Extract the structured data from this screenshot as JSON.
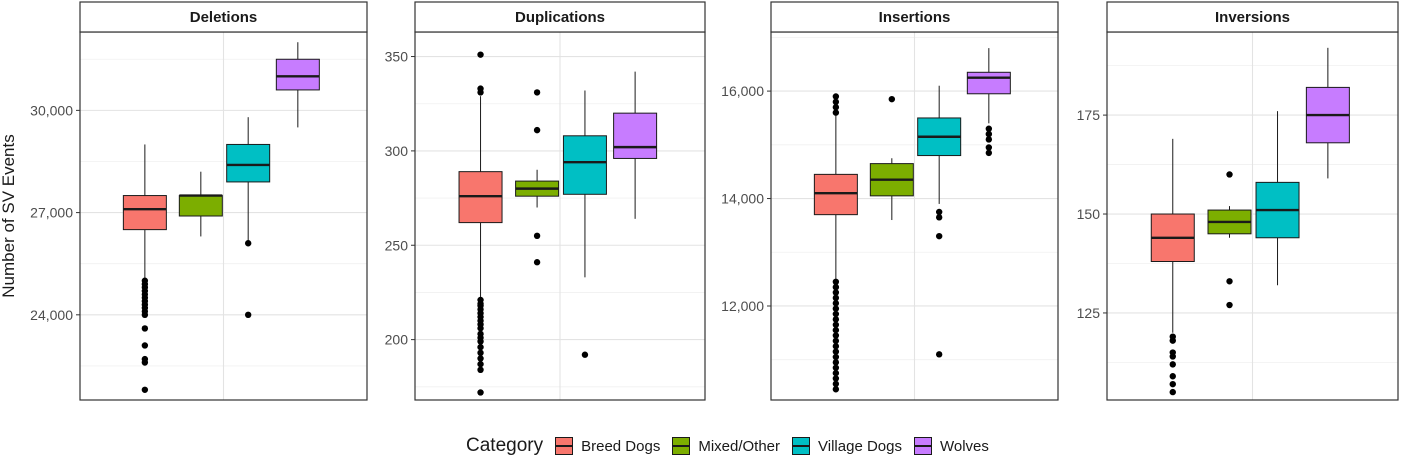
{
  "chart_data": [
    {
      "type": "box",
      "title": "Deletions",
      "ylabel": "Number of SV Events",
      "ylim": [
        21500,
        32300
      ],
      "yticks": [
        24000,
        27000,
        30000
      ],
      "ytick_labels": [
        "24,000",
        "27,000",
        "30,000"
      ],
      "groups": [
        {
          "category": "Breed Dogs",
          "q1": 26500,
          "median": 27100,
          "q3": 27500,
          "whisker_low": 25000,
          "whisker_high": 29000,
          "outliers": [
            25000,
            24900,
            24800,
            24700,
            24600,
            24500,
            24400,
            24300,
            24200,
            24100,
            24000,
            23600,
            23100,
            22700,
            22600,
            21800
          ]
        },
        {
          "category": "Mixed/Other",
          "q1": 26900,
          "median": 27500,
          "q3": 27500,
          "whisker_low": 26300,
          "whisker_high": 28200,
          "outliers": []
        },
        {
          "category": "Village Dogs",
          "q1": 27900,
          "median": 28400,
          "q3": 29000,
          "whisker_low": 26100,
          "whisker_high": 29800,
          "outliers": [
            26100,
            24000
          ]
        },
        {
          "category": "Wolves",
          "q1": 30600,
          "median": 31000,
          "q3": 31500,
          "whisker_low": 29500,
          "whisker_high": 32000,
          "outliers": []
        }
      ]
    },
    {
      "type": "box",
      "title": "Duplications",
      "ylim": [
        168,
        363
      ],
      "yticks": [
        200,
        250,
        300,
        350
      ],
      "ytick_labels": [
        "200",
        "250",
        "300",
        "350"
      ],
      "groups": [
        {
          "category": "Breed Dogs",
          "q1": 262,
          "median": 276,
          "q3": 289,
          "whisker_low": 222,
          "whisker_high": 329,
          "outliers": [
            351,
            333,
            331,
            221,
            219,
            218,
            216,
            214,
            212,
            210,
            208,
            206,
            203,
            201,
            199,
            196,
            193,
            190,
            187,
            184,
            172
          ]
        },
        {
          "category": "Mixed/Other",
          "q1": 276,
          "median": 280,
          "q3": 284,
          "whisker_low": 270,
          "whisker_high": 290,
          "outliers": [
            331,
            311,
            255,
            241
          ]
        },
        {
          "category": "Village Dogs",
          "q1": 277,
          "median": 294,
          "q3": 308,
          "whisker_low": 233,
          "whisker_high": 332,
          "outliers": [
            192
          ]
        },
        {
          "category": "Wolves",
          "q1": 296,
          "median": 302,
          "q3": 320,
          "whisker_low": 264,
          "whisker_high": 342,
          "outliers": []
        }
      ]
    },
    {
      "type": "box",
      "title": "Insertions",
      "ylim": [
        10250,
        17100
      ],
      "yticks": [
        12000,
        14000,
        16000
      ],
      "ytick_labels": [
        "12,000",
        "14,000",
        "16,000"
      ],
      "groups": [
        {
          "category": "Breed Dogs",
          "q1": 13700,
          "median": 14100,
          "q3": 14450,
          "whisker_low": 12500,
          "whisker_high": 15600,
          "outliers": [
            15900,
            15800,
            15700,
            15600,
            12450,
            12350,
            12250,
            12150,
            12050,
            11950,
            11850,
            11750,
            11650,
            11550,
            11450,
            11350,
            11250,
            11150,
            11050,
            10950,
            10850,
            10750,
            10650,
            10550,
            10450
          ]
        },
        {
          "category": "Mixed/Other",
          "q1": 14050,
          "median": 14350,
          "q3": 14650,
          "whisker_low": 13600,
          "whisker_high": 14750,
          "outliers": [
            15850
          ]
        },
        {
          "category": "Village Dogs",
          "q1": 14800,
          "median": 15150,
          "q3": 15500,
          "whisker_low": 13900,
          "whisker_high": 16100,
          "outliers": [
            13750,
            13650,
            13300,
            11100
          ]
        },
        {
          "category": "Wolves",
          "q1": 15950,
          "median": 16250,
          "q3": 16350,
          "whisker_low": 15400,
          "whisker_high": 16800,
          "outliers": [
            15300,
            15200,
            15100,
            14950,
            14850
          ]
        }
      ]
    },
    {
      "type": "box",
      "title": "Inversions",
      "ylim": [
        103,
        196
      ],
      "yticks": [
        125,
        150,
        175
      ],
      "ytick_labels": [
        "125",
        "150",
        "175"
      ],
      "groups": [
        {
          "category": "Breed Dogs",
          "q1": 138,
          "median": 144,
          "q3": 150,
          "whisker_low": 120,
          "whisker_high": 169,
          "outliers": [
            119,
            118,
            115,
            114,
            112,
            109,
            107,
            105
          ]
        },
        {
          "category": "Mixed/Other",
          "q1": 145,
          "median": 148,
          "q3": 151,
          "whisker_low": 144,
          "whisker_high": 152,
          "outliers": [
            160,
            133,
            127
          ]
        },
        {
          "category": "Village Dogs",
          "q1": 144,
          "median": 151,
          "q3": 158,
          "whisker_low": 132,
          "whisker_high": 176,
          "outliers": []
        },
        {
          "category": "Wolves",
          "q1": 168,
          "median": 175,
          "q3": 182,
          "whisker_low": 159,
          "whisker_high": 192,
          "outliers": []
        }
      ]
    }
  ],
  "legend": {
    "title": "Category",
    "items": [
      {
        "label": "Breed Dogs",
        "color": "#F8766D"
      },
      {
        "label": "Mixed/Other",
        "color": "#7CAE00"
      },
      {
        "label": "Village Dogs",
        "color": "#00BFC4"
      },
      {
        "label": "Wolves",
        "color": "#C77CFF"
      }
    ]
  }
}
